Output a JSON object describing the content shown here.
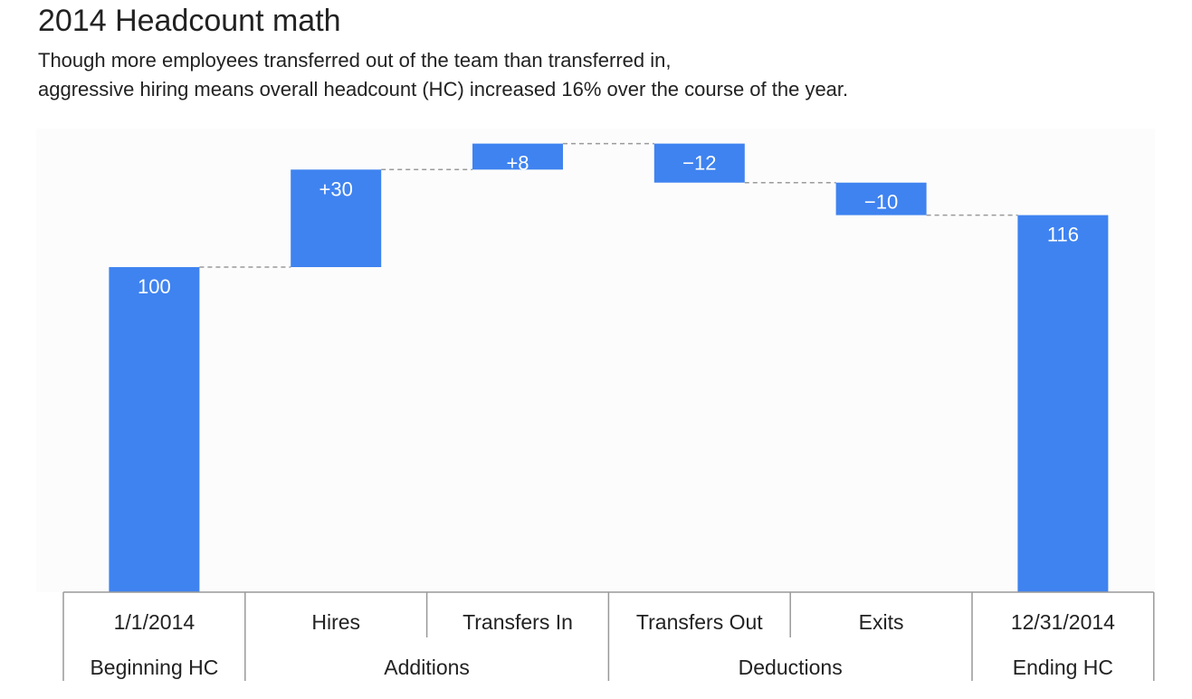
{
  "title": "2014 Headcount math",
  "subtitle_lines": [
    "Though more employees transferred out of the team than transferred in,",
    "aggressive hiring means overall headcount (HC) increased 16% over the course of the year."
  ],
  "colors": {
    "bar": "#3f83f0",
    "connector": "#9a9a9a",
    "table_border": "#999999",
    "label_text": "#ffffff",
    "axis_text": "#222222",
    "plot_background": "#fcfcfc"
  },
  "chart_data": {
    "type": "bar",
    "subtype": "waterfall",
    "title": "2014 Headcount math",
    "categories": [
      "1/1/2014",
      "Hires",
      "Transfers In",
      "Transfers Out",
      "Exits",
      "12/31/2014"
    ],
    "values": [
      100,
      30,
      8,
      -12,
      -10,
      116
    ],
    "value_labels": [
      "100",
      "+30",
      "+8",
      "−12",
      "−10",
      "116"
    ],
    "bar_kinds": [
      "total",
      "delta",
      "delta",
      "delta",
      "delta",
      "total"
    ],
    "groups": [
      {
        "label": "Beginning HC",
        "categories": [
          "1/1/2014"
        ]
      },
      {
        "label": "Additions",
        "categories": [
          "Hires",
          "Transfers In"
        ]
      },
      {
        "label": "Deductions",
        "categories": [
          "Transfers Out",
          "Exits"
        ]
      },
      {
        "label": "Ending HC",
        "categories": [
          "12/31/2014"
        ]
      }
    ],
    "ylim": [
      0,
      138
    ],
    "grid": false,
    "legend": "none",
    "xlabel": "",
    "ylabel": ""
  }
}
